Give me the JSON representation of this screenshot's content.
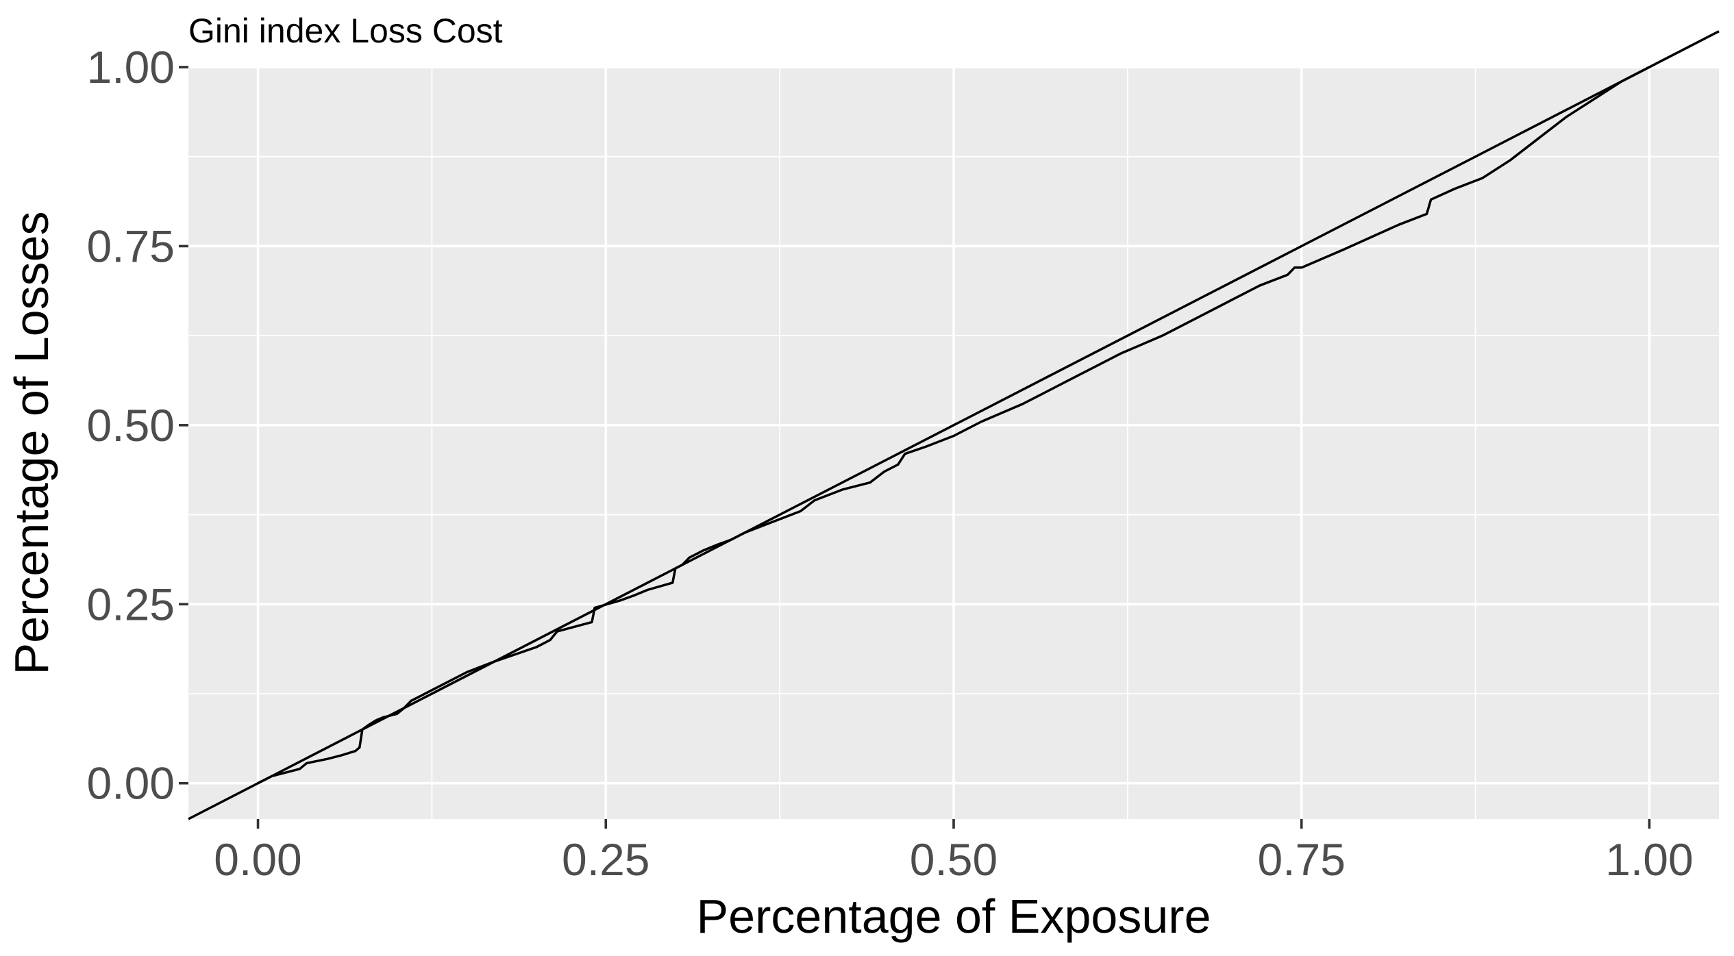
{
  "chart_data": {
    "type": "line",
    "title": "Gini index Loss Cost",
    "xlabel": "Percentage of Exposure",
    "ylabel": "Percentage of Losses",
    "xlim": [
      -0.05,
      1.05
    ],
    "ylim": [
      -0.05,
      1.0
    ],
    "x_ticks": [
      0.0,
      0.25,
      0.5,
      0.75,
      1.0
    ],
    "x_tick_labels": [
      "0.00",
      "0.25",
      "0.50",
      "0.75",
      "1.00"
    ],
    "y_ticks": [
      0.0,
      0.25,
      0.5,
      0.75,
      1.0
    ],
    "y_tick_labels": [
      "0.00",
      "0.25",
      "0.50",
      "0.75",
      "1.00"
    ],
    "grid": true,
    "panel_background": "#ebebeb",
    "grid_color": "#ffffff",
    "line_color": "#000000",
    "reference_line": {
      "x": [
        -0.05,
        1.05
      ],
      "y": [
        -0.05,
        1.05
      ]
    },
    "series": [
      {
        "x": [
          0.0,
          0.01,
          0.02,
          0.03,
          0.035,
          0.05,
          0.06,
          0.07,
          0.073,
          0.075,
          0.08,
          0.085,
          0.09,
          0.1,
          0.105,
          0.11,
          0.12,
          0.13,
          0.15,
          0.17,
          0.2,
          0.21,
          0.215,
          0.24,
          0.242,
          0.26,
          0.27,
          0.28,
          0.298,
          0.3,
          0.305,
          0.31,
          0.32,
          0.33,
          0.34,
          0.35,
          0.37,
          0.39,
          0.4,
          0.42,
          0.44,
          0.45,
          0.46,
          0.465,
          0.48,
          0.5,
          0.52,
          0.55,
          0.58,
          0.6,
          0.62,
          0.65,
          0.68,
          0.7,
          0.72,
          0.74,
          0.745,
          0.75,
          0.78,
          0.82,
          0.84,
          0.843,
          0.86,
          0.88,
          0.9,
          0.92,
          0.94,
          0.96,
          0.98,
          1.0
        ],
        "y": [
          0.0,
          0.01,
          0.015,
          0.02,
          0.028,
          0.034,
          0.039,
          0.045,
          0.05,
          0.075,
          0.082,
          0.088,
          0.092,
          0.097,
          0.105,
          0.115,
          0.125,
          0.135,
          0.155,
          0.17,
          0.19,
          0.2,
          0.212,
          0.225,
          0.245,
          0.255,
          0.262,
          0.27,
          0.28,
          0.3,
          0.305,
          0.315,
          0.325,
          0.333,
          0.34,
          0.35,
          0.365,
          0.38,
          0.395,
          0.41,
          0.42,
          0.435,
          0.445,
          0.46,
          0.47,
          0.485,
          0.505,
          0.53,
          0.56,
          0.58,
          0.6,
          0.625,
          0.655,
          0.675,
          0.695,
          0.71,
          0.72,
          0.72,
          0.745,
          0.78,
          0.795,
          0.815,
          0.83,
          0.845,
          0.87,
          0.9,
          0.93,
          0.955,
          0.98,
          1.0
        ]
      }
    ]
  }
}
